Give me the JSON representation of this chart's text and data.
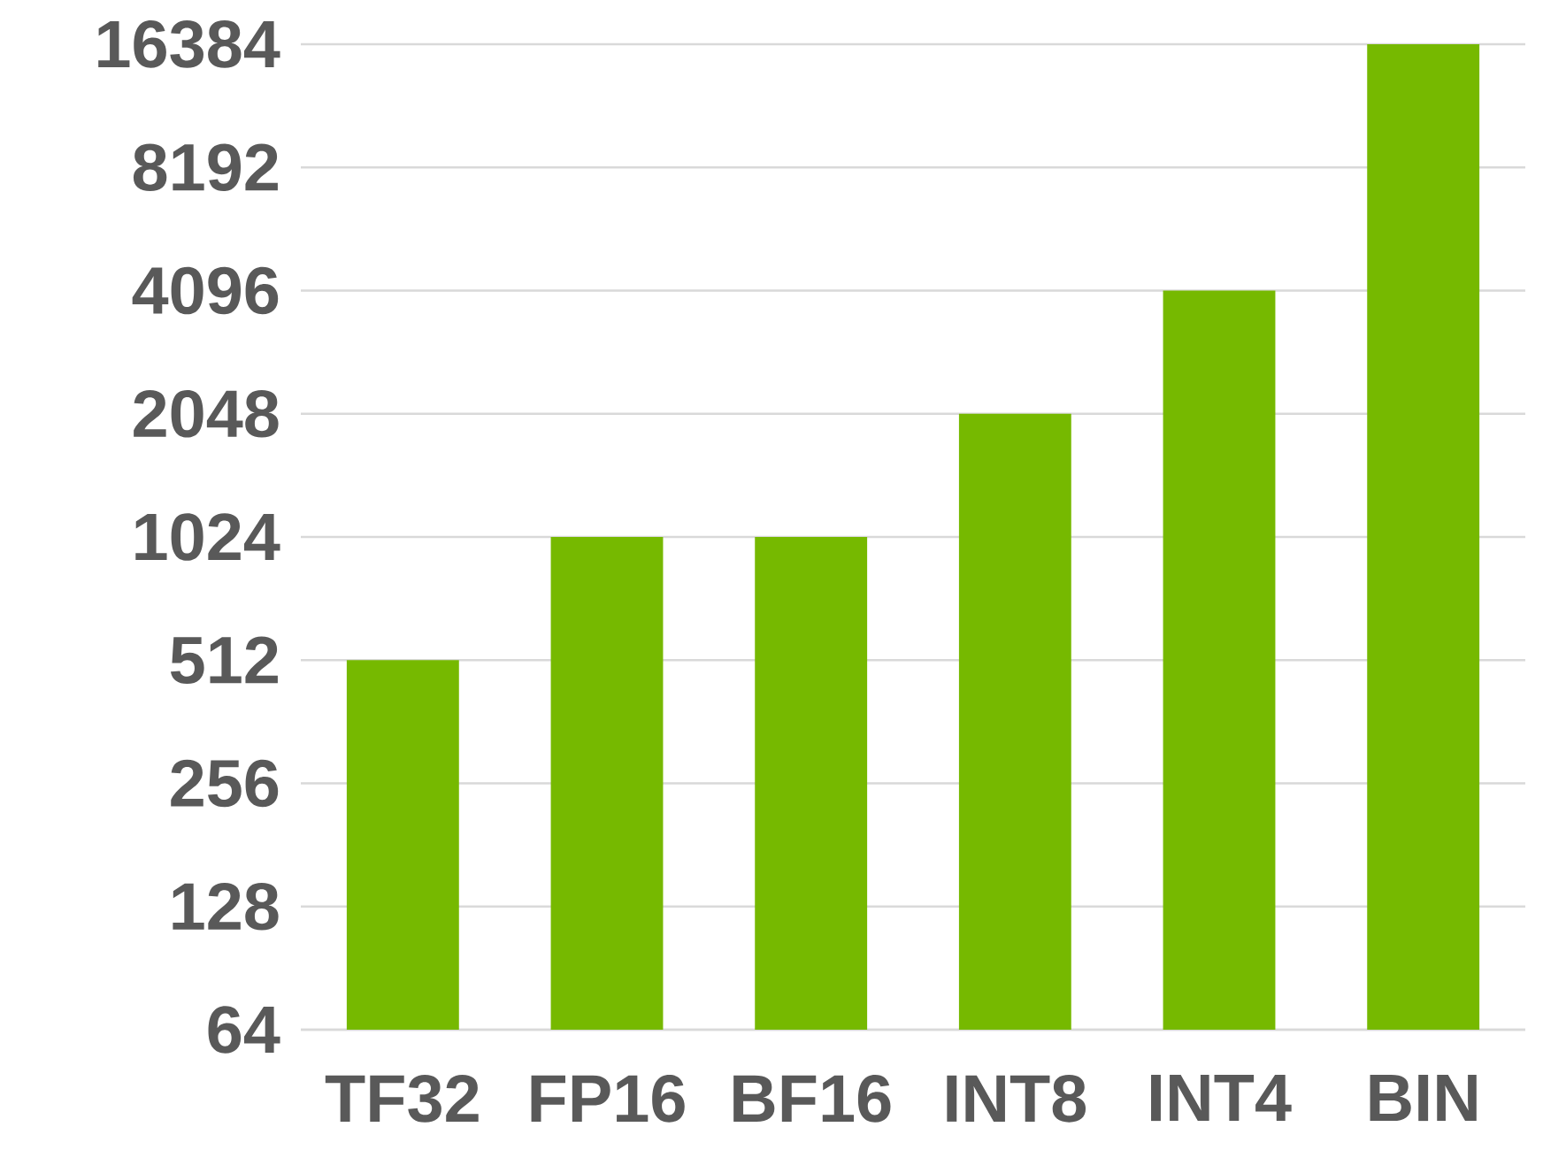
{
  "chart_data": {
    "type": "bar",
    "categories": [
      "TF32",
      "FP16",
      "BF16",
      "INT8",
      "INT4",
      "BIN"
    ],
    "values": [
      512,
      1024,
      1024,
      2048,
      4096,
      16384
    ],
    "color": "#76b900",
    "log": "y",
    "ylim": [
      64,
      16384
    ],
    "yticks": [
      64,
      128,
      256,
      512,
      1024,
      2048,
      4096,
      8192,
      16384
    ],
    "grid": "y"
  }
}
